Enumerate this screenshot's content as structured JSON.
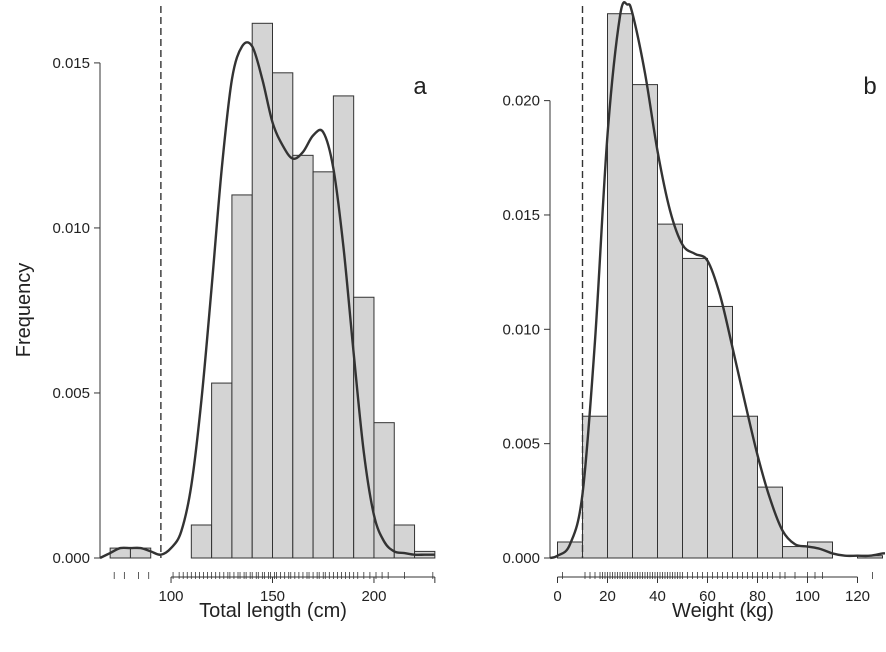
{
  "figure": {
    "ylabel": "Frequency"
  },
  "chart_data": [
    {
      "type": "bar",
      "panel_label": "a",
      "xlabel": "Total length (cm)",
      "ylabel": "Frequency",
      "xlim": [
        65,
        235
      ],
      "ylim": [
        0,
        0.0163
      ],
      "xticks": [
        100,
        150,
        200
      ],
      "yticks": [
        "0.000",
        "0.005",
        "0.010",
        "0.015"
      ],
      "bin_edges": [
        70,
        80,
        90,
        100,
        110,
        120,
        130,
        140,
        150,
        160,
        170,
        180,
        190,
        200,
        210,
        220,
        230
      ],
      "values": [
        0.0003,
        0.0003,
        0.0,
        0.0,
        0.001,
        0.0053,
        0.011,
        0.0162,
        0.0147,
        0.0122,
        0.0117,
        0.014,
        0.0079,
        0.0041,
        0.001,
        0.0002
      ],
      "threshold_x": 95,
      "density": {
        "x": [
          65,
          70,
          75,
          80,
          85,
          90,
          95,
          100,
          105,
          110,
          115,
          120,
          125,
          130,
          135,
          140,
          145,
          150,
          155,
          160,
          165,
          170,
          175,
          180,
          185,
          190,
          195,
          200,
          205,
          210,
          215,
          220,
          225,
          230
        ],
        "y": [
          0.0,
          0.00015,
          0.0003,
          0.0003,
          0.0003,
          0.0002,
          0.0001,
          0.0003,
          0.0008,
          0.0022,
          0.0048,
          0.0082,
          0.0118,
          0.0145,
          0.0155,
          0.0155,
          0.0145,
          0.0132,
          0.0125,
          0.0121,
          0.0123,
          0.0128,
          0.0129,
          0.0118,
          0.0094,
          0.0062,
          0.0032,
          0.0013,
          0.0005,
          0.0002,
          0.00015,
          0.0001,
          0.0001,
          0.0001
        ]
      },
      "rug": [
        72,
        77,
        84,
        89,
        101,
        104,
        106,
        108,
        110,
        112,
        114,
        116,
        118,
        120,
        122,
        124,
        126,
        128,
        129,
        131,
        133,
        134,
        136,
        137,
        139,
        140,
        142,
        143,
        145,
        146,
        148,
        149,
        151,
        152,
        154,
        156,
        158,
        159,
        161,
        163,
        165,
        167,
        168,
        170,
        172,
        173,
        175,
        176,
        178,
        180,
        182,
        184,
        186,
        188,
        190,
        192,
        195,
        198,
        201,
        204,
        207,
        215,
        229
      ]
    },
    {
      "type": "bar",
      "panel_label": "b",
      "xlabel": "Weight (kg)",
      "ylabel": "",
      "xlim": [
        -3,
        131
      ],
      "ylim": [
        0,
        0.0244
      ],
      "xticks": [
        0,
        20,
        40,
        60,
        80,
        100,
        120
      ],
      "yticks": [
        "0.000",
        "0.005",
        "0.010",
        "0.015",
        "0.020"
      ],
      "bin_edges": [
        0,
        10,
        20,
        30,
        40,
        50,
        60,
        70,
        80,
        90,
        100,
        110,
        120,
        130
      ],
      "values": [
        0.0007,
        0.0062,
        0.0238,
        0.0207,
        0.0146,
        0.0131,
        0.011,
        0.0062,
        0.0031,
        0.0005,
        0.0007,
        0.0,
        0.0001
      ],
      "threshold_x": 10,
      "density": {
        "x": [
          -3,
          0,
          5,
          10,
          15,
          20,
          25,
          28,
          30,
          35,
          40,
          45,
          50,
          55,
          60,
          65,
          70,
          75,
          80,
          85,
          90,
          95,
          100,
          105,
          110,
          115,
          120,
          125,
          130,
          131
        ],
        "y": [
          0.0,
          0.0001,
          0.0006,
          0.0028,
          0.0095,
          0.0185,
          0.0237,
          0.0242,
          0.0238,
          0.0212,
          0.0178,
          0.0152,
          0.0137,
          0.0133,
          0.013,
          0.0115,
          0.0092,
          0.0068,
          0.0045,
          0.0026,
          0.0012,
          0.0006,
          0.0005,
          0.0004,
          0.0002,
          0.0001,
          0.0001,
          0.0001,
          0.0002,
          0.0002
        ]
      },
      "rug": [
        2,
        11,
        13,
        15,
        17,
        18,
        19,
        20,
        21,
        22,
        23,
        24,
        25,
        26,
        27,
        28,
        29,
        30,
        31,
        32,
        33,
        34,
        35,
        36,
        37,
        38,
        39,
        40,
        41,
        42,
        43,
        44,
        45,
        46,
        47,
        48,
        49,
        50,
        52,
        54,
        56,
        58,
        60,
        62,
        64,
        66,
        68,
        70,
        72,
        74,
        76,
        78,
        80,
        82,
        84,
        86,
        89,
        91,
        95,
        100,
        103,
        106,
        126
      ]
    }
  ]
}
